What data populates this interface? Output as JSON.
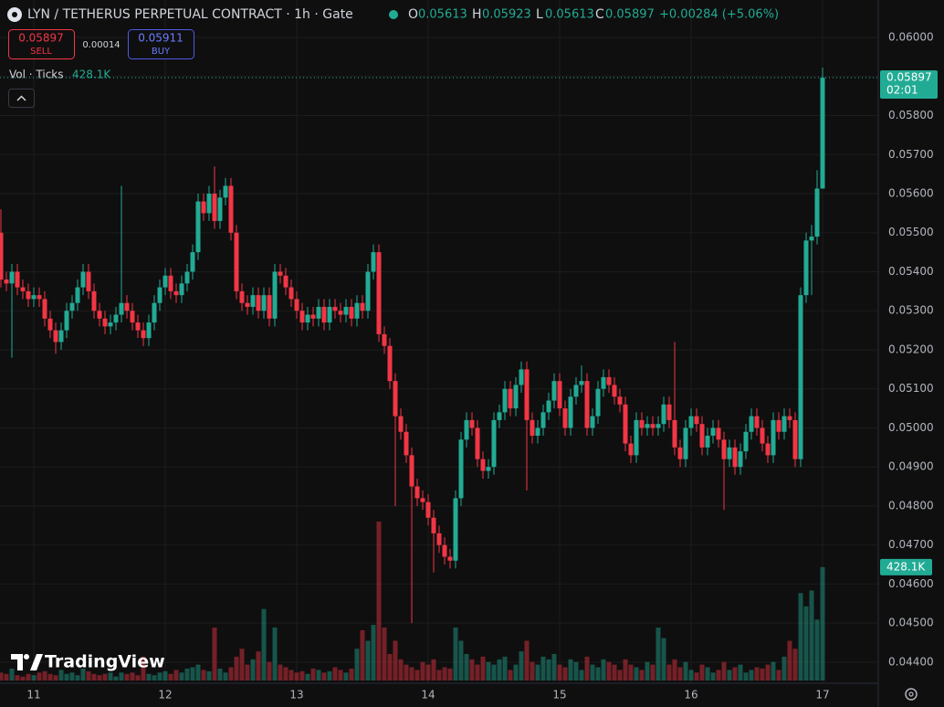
{
  "header": {
    "title": "LYN / TETHERUS PERPETUAL CONTRACT · 1h · Gate",
    "o_key": "O",
    "o_val": "0.05613",
    "h_key": "H",
    "h_val": "0.05923",
    "l_key": "L",
    "l_val": "0.05613",
    "c_key": "C",
    "c_val": "0.05897",
    "change": "+0.00284 (+5.06%)",
    "sell_price": "0.05897",
    "sell": "SELL",
    "spread": "0.00014",
    "buy_price": "0.05911",
    "buy": "BUY",
    "vol_label": "Vol · Ticks",
    "vol_value": "428.1K",
    "last_price": "0.05897",
    "countdown": "02:01",
    "last_volume": "428.1K",
    "brand": "TradingView"
  },
  "chart_data": {
    "type": "candlestick",
    "categories": [
      null,
      null,
      null,
      null,
      null,
      null,
      "11",
      null,
      null,
      null,
      null,
      null,
      null,
      null,
      null,
      null,
      null,
      null,
      null,
      null,
      null,
      null,
      null,
      null,
      null,
      null,
      null,
      null,
      null,
      null,
      "12",
      null,
      null,
      null,
      null,
      null,
      null,
      null,
      null,
      null,
      null,
      null,
      null,
      null,
      null,
      null,
      null,
      null,
      null,
      null,
      null,
      null,
      null,
      null,
      "13",
      null,
      null,
      null,
      null,
      null,
      null,
      null,
      null,
      null,
      null,
      null,
      null,
      null,
      null,
      null,
      null,
      null,
      null,
      null,
      null,
      null,
      null,
      null,
      "14",
      null,
      null,
      null,
      null,
      null,
      null,
      null,
      null,
      null,
      null,
      null,
      null,
      null,
      null,
      null,
      null,
      null,
      null,
      null,
      null,
      null,
      null,
      null,
      "15",
      null,
      null,
      null,
      null,
      null,
      null,
      null,
      null,
      null,
      null,
      null,
      null,
      null,
      null,
      null,
      null,
      null,
      null,
      null,
      null,
      null,
      null,
      null,
      "16",
      null,
      null,
      null,
      null,
      null,
      null,
      null,
      null,
      null,
      null,
      null,
      null,
      null,
      null,
      null,
      null,
      null,
      null,
      null,
      null,
      null,
      null,
      null,
      "17"
    ],
    "open": [
      0.055,
      0.0538,
      0.0537,
      0.054,
      0.0536,
      0.0535,
      0.0533,
      0.0534,
      0.0533,
      0.0528,
      0.0525,
      0.0522,
      0.0525,
      0.053,
      0.0532,
      0.0536,
      0.054,
      0.0535,
      0.053,
      0.0528,
      0.0526,
      0.0527,
      0.0529,
      0.0532,
      0.053,
      0.0527,
      0.0525,
      0.0523,
      0.0527,
      0.0532,
      0.0536,
      0.0539,
      0.0535,
      0.0534,
      0.0537,
      0.054,
      0.0545,
      0.0558,
      0.0555,
      0.056,
      0.0553,
      0.0559,
      0.0562,
      0.055,
      0.0535,
      0.0532,
      0.0531,
      0.0534,
      0.053,
      0.0534,
      0.0528,
      0.054,
      0.0539,
      0.0536,
      0.0533,
      0.053,
      0.0527,
      0.0529,
      0.0528,
      0.0531,
      0.0527,
      0.0531,
      0.053,
      0.0529,
      0.0531,
      0.0528,
      0.0532,
      0.053,
      0.054,
      0.0545,
      0.0524,
      0.0521,
      0.0512,
      0.0503,
      0.0499,
      0.0493,
      0.0485,
      0.0482,
      0.0481,
      0.0477,
      0.0473,
      0.047,
      0.0467,
      0.0466,
      0.0482,
      0.0497,
      0.0502,
      0.05,
      0.0492,
      0.0489,
      0.049,
      0.0502,
      0.0504,
      0.051,
      0.0505,
      0.0511,
      0.0515,
      0.0502,
      0.0498,
      0.05,
      0.0504,
      0.0507,
      0.0512,
      0.0505,
      0.05,
      0.0508,
      0.0511,
      0.0512,
      0.05,
      0.0503,
      0.051,
      0.0513,
      0.0511,
      0.0508,
      0.0506,
      0.0496,
      0.0493,
      0.0502,
      0.05,
      0.0501,
      0.05,
      0.0501,
      0.0506,
      0.0502,
      0.0495,
      0.0492,
      0.05,
      0.0503,
      0.0501,
      0.0495,
      0.0498,
      0.05,
      0.0497,
      0.0492,
      0.0495,
      0.049,
      0.0494,
      0.0499,
      0.0503,
      0.05,
      0.0496,
      0.0493,
      0.0502,
      0.0499,
      0.0503,
      0.0502,
      0.0492,
      0.0534,
      0.0548,
      0.0549,
      0.05613
    ],
    "high": [
      0.0556,
      0.054,
      0.0542,
      0.0542,
      0.0538,
      0.0537,
      0.0536,
      0.0536,
      0.0535,
      0.053,
      0.0527,
      0.0527,
      0.0532,
      0.0534,
      0.0538,
      0.0542,
      0.0542,
      0.0537,
      0.0532,
      0.053,
      0.0529,
      0.0531,
      0.0562,
      0.0534,
      0.0532,
      0.0529,
      0.0527,
      0.0529,
      0.0534,
      0.0538,
      0.0541,
      0.0541,
      0.0537,
      0.0539,
      0.0542,
      0.0547,
      0.056,
      0.056,
      0.0562,
      0.0567,
      0.0561,
      0.0564,
      0.0564,
      0.0552,
      0.0537,
      0.0534,
      0.0536,
      0.0536,
      0.0536,
      0.0536,
      0.0542,
      0.0542,
      0.0541,
      0.0538,
      0.0535,
      0.0532,
      0.0531,
      0.0531,
      0.0533,
      0.0533,
      0.0533,
      0.0533,
      0.0532,
      0.0533,
      0.0533,
      0.0534,
      0.0534,
      0.0542,
      0.0547,
      0.0547,
      0.0526,
      0.0523,
      0.0514,
      0.0505,
      0.0501,
      0.0495,
      0.0487,
      0.0484,
      0.0483,
      0.0479,
      0.0475,
      0.0472,
      0.0469,
      0.0484,
      0.0499,
      0.0504,
      0.0504,
      0.0502,
      0.0494,
      0.0492,
      0.0504,
      0.0506,
      0.0512,
      0.0512,
      0.0513,
      0.0517,
      0.0517,
      0.0504,
      0.0502,
      0.0506,
      0.0509,
      0.0514,
      0.0514,
      0.0507,
      0.051,
      0.0513,
      0.0516,
      0.0514,
      0.0505,
      0.0512,
      0.0515,
      0.0515,
      0.0513,
      0.051,
      0.0508,
      0.0498,
      0.0504,
      0.0504,
      0.0503,
      0.0503,
      0.0503,
      0.0508,
      0.0508,
      0.0522,
      0.0497,
      0.0502,
      0.0505,
      0.0505,
      0.0503,
      0.05,
      0.0502,
      0.0502,
      0.0499,
      0.0497,
      0.0497,
      0.0496,
      0.0501,
      0.0505,
      0.0505,
      0.0502,
      0.0498,
      0.0504,
      0.0504,
      0.0505,
      0.0505,
      0.0504,
      0.0536,
      0.055,
      0.0552,
      0.0566,
      0.05923
    ],
    "low": [
      0.0536,
      0.0535,
      0.0518,
      0.0534,
      0.0533,
      0.0531,
      0.0531,
      0.0531,
      0.0526,
      0.0523,
      0.0519,
      0.052,
      0.0523,
      0.0528,
      0.053,
      0.0534,
      0.0533,
      0.0528,
      0.0526,
      0.0524,
      0.0524,
      0.0525,
      0.0527,
      0.0528,
      0.0525,
      0.0523,
      0.0521,
      0.0521,
      0.0525,
      0.053,
      0.0534,
      0.0533,
      0.0532,
      0.0532,
      0.0535,
      0.0538,
      0.0543,
      0.0553,
      0.0553,
      0.0551,
      0.0551,
      0.0557,
      0.0548,
      0.0533,
      0.053,
      0.0529,
      0.0529,
      0.0528,
      0.0528,
      0.0526,
      0.0526,
      0.0537,
      0.0534,
      0.0531,
      0.0528,
      0.0525,
      0.0525,
      0.0526,
      0.0526,
      0.0525,
      0.0525,
      0.0528,
      0.0527,
      0.0527,
      0.0526,
      0.0526,
      0.0528,
      0.0528,
      0.0538,
      0.0522,
      0.0519,
      0.051,
      0.048,
      0.0497,
      0.0491,
      0.045,
      0.048,
      0.0479,
      0.0475,
      0.0463,
      0.0468,
      0.0465,
      0.0464,
      0.0464,
      0.048,
      0.0495,
      0.0498,
      0.049,
      0.0487,
      0.0487,
      0.0488,
      0.05,
      0.0502,
      0.0503,
      0.0503,
      0.0509,
      0.0484,
      0.0496,
      0.0496,
      0.0498,
      0.0502,
      0.0505,
      0.0503,
      0.0498,
      0.0498,
      0.0506,
      0.0509,
      0.0498,
      0.0498,
      0.0501,
      0.0508,
      0.0509,
      0.0506,
      0.0504,
      0.0494,
      0.0491,
      0.0491,
      0.0498,
      0.0498,
      0.0498,
      0.0498,
      0.0499,
      0.05,
      0.0493,
      0.049,
      0.049,
      0.0498,
      0.0499,
      0.0493,
      0.0493,
      0.0496,
      0.0495,
      0.0479,
      0.049,
      0.0488,
      0.0488,
      0.0492,
      0.0497,
      0.0498,
      0.0494,
      0.0491,
      0.0491,
      0.0497,
      0.0497,
      0.05,
      0.049,
      0.049,
      0.0532,
      0.0534,
      0.0547,
      0.05613
    ],
    "close": [
      0.0538,
      0.0537,
      0.054,
      0.0536,
      0.0535,
      0.0533,
      0.0534,
      0.0533,
      0.0528,
      0.0525,
      0.0522,
      0.0525,
      0.053,
      0.0532,
      0.0536,
      0.054,
      0.0535,
      0.053,
      0.0528,
      0.0526,
      0.0527,
      0.0529,
      0.0532,
      0.053,
      0.0527,
      0.0525,
      0.0523,
      0.0527,
      0.0532,
      0.0536,
      0.0539,
      0.0535,
      0.0534,
      0.0537,
      0.054,
      0.0545,
      0.0558,
      0.0555,
      0.056,
      0.0553,
      0.0559,
      0.0562,
      0.055,
      0.0535,
      0.0532,
      0.0531,
      0.0534,
      0.053,
      0.0534,
      0.0528,
      0.054,
      0.0539,
      0.0536,
      0.0533,
      0.053,
      0.0527,
      0.0529,
      0.0528,
      0.0531,
      0.0527,
      0.0531,
      0.053,
      0.0529,
      0.0531,
      0.0528,
      0.0532,
      0.053,
      0.054,
      0.0545,
      0.0524,
      0.0521,
      0.0512,
      0.0503,
      0.0499,
      0.0493,
      0.0485,
      0.0482,
      0.0481,
      0.0477,
      0.0473,
      0.047,
      0.0467,
      0.0466,
      0.0482,
      0.0497,
      0.0502,
      0.05,
      0.0492,
      0.0489,
      0.049,
      0.0502,
      0.0504,
      0.051,
      0.0505,
      0.0511,
      0.0515,
      0.0502,
      0.0498,
      0.05,
      0.0504,
      0.0507,
      0.0512,
      0.0505,
      0.05,
      0.0508,
      0.0511,
      0.0512,
      0.05,
      0.0503,
      0.051,
      0.0513,
      0.0511,
      0.0508,
      0.0506,
      0.0496,
      0.0493,
      0.0502,
      0.05,
      0.0501,
      0.05,
      0.0501,
      0.0506,
      0.0502,
      0.0495,
      0.0492,
      0.05,
      0.0503,
      0.0501,
      0.0495,
      0.0498,
      0.05,
      0.0497,
      0.0492,
      0.0495,
      0.049,
      0.0494,
      0.0499,
      0.0503,
      0.05,
      0.0496,
      0.0493,
      0.0502,
      0.0499,
      0.0503,
      0.0502,
      0.0492,
      0.0534,
      0.0548,
      0.0549,
      0.05613,
      0.05897
    ],
    "volume": [
      30,
      25,
      45,
      20,
      15,
      25,
      20,
      30,
      35,
      25,
      20,
      40,
      25,
      30,
      20,
      45,
      35,
      25,
      20,
      25,
      30,
      15,
      30,
      25,
      30,
      20,
      90,
      25,
      20,
      30,
      35,
      25,
      40,
      30,
      45,
      50,
      60,
      40,
      35,
      200,
      45,
      30,
      50,
      90,
      120,
      60,
      80,
      110,
      270,
      70,
      200,
      60,
      50,
      40,
      30,
      35,
      25,
      45,
      40,
      30,
      35,
      50,
      40,
      30,
      45,
      120,
      190,
      150,
      210,
      600,
      200,
      100,
      150,
      80,
      60,
      50,
      40,
      70,
      60,
      80,
      40,
      50,
      45,
      200,
      150,
      100,
      80,
      60,
      90,
      70,
      60,
      80,
      90,
      40,
      60,
      110,
      150,
      70,
      60,
      90,
      80,
      100,
      60,
      50,
      80,
      70,
      40,
      90,
      60,
      50,
      80,
      70,
      60,
      40,
      80,
      60,
      50,
      40,
      70,
      60,
      200,
      160,
      60,
      80,
      50,
      70,
      40,
      30,
      60,
      50,
      30,
      40,
      70,
      40,
      50,
      60,
      30,
      40,
      50,
      45,
      60,
      70,
      40,
      90,
      150,
      120,
      330,
      280,
      340,
      230,
      428.1
    ],
    "ylim": [
      0.04346,
      0.06096
    ],
    "yticks": [
      {
        "value": 0.06,
        "label": "0.06000"
      },
      {
        "value": 0.059,
        "label": "0.05900"
      },
      {
        "value": 0.058,
        "label": "0.05800"
      },
      {
        "value": 0.057,
        "label": "0.05700"
      },
      {
        "value": 0.056,
        "label": "0.05600"
      },
      {
        "value": 0.055,
        "label": "0.05500"
      },
      {
        "value": 0.054,
        "label": "0.05400"
      },
      {
        "value": 0.053,
        "label": "0.05300"
      },
      {
        "value": 0.052,
        "label": "0.05200"
      },
      {
        "value": 0.051,
        "label": "0.05100"
      },
      {
        "value": 0.05,
        "label": "0.05000"
      },
      {
        "value": 0.049,
        "label": "0.04900"
      },
      {
        "value": 0.048,
        "label": "0.04800"
      },
      {
        "value": 0.047,
        "label": "0.04700"
      },
      {
        "value": 0.046,
        "label": "0.04600"
      },
      {
        "value": 0.045,
        "label": "0.04500"
      },
      {
        "value": 0.044,
        "label": "0.04400"
      }
    ],
    "volume_ylim": [
      0,
      1000
    ],
    "up_color": "#22ab94",
    "down_color": "#f23645",
    "grid": true
  }
}
